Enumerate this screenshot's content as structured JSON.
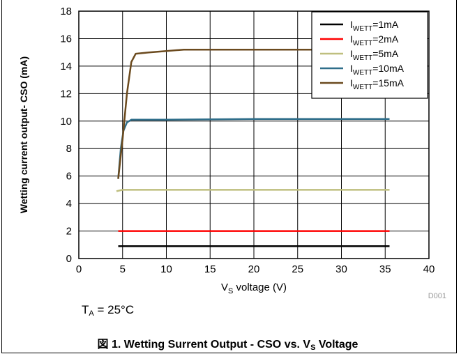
{
  "chart_data": {
    "type": "line",
    "xlabel": "V",
    "xlabel_sub": "S",
    "xlabel_suffix": " voltage (V)",
    "ylabel": "Wetting current output- CSO (mA)",
    "xlim": [
      0,
      40
    ],
    "ylim": [
      0,
      18
    ],
    "xticks": [
      0,
      5,
      10,
      15,
      20,
      25,
      30,
      35,
      40
    ],
    "yticks": [
      0,
      2,
      4,
      6,
      8,
      10,
      12,
      14,
      16,
      18
    ],
    "grid": true,
    "legend_position": "top-right",
    "series": [
      {
        "name": "I",
        "name_sub": "WETT",
        "name_suffix": "=1mA",
        "color": "#000000",
        "x": [
          4.5,
          10,
          20,
          30,
          35.5
        ],
        "y": [
          0.9,
          0.9,
          0.9,
          0.9,
          0.9
        ]
      },
      {
        "name": "I",
        "name_sub": "WETT",
        "name_suffix": "=2mA",
        "color": "#ff0000",
        "x": [
          4.5,
          10,
          20,
          30,
          35.5
        ],
        "y": [
          2.0,
          2.0,
          2.0,
          2.0,
          2.0
        ]
      },
      {
        "name": "I",
        "name_sub": "WETT",
        "name_suffix": "=5mA",
        "color": "#bfbf7f",
        "x": [
          4.3,
          5.0,
          10,
          20,
          30,
          35.5
        ],
        "y": [
          4.9,
          5.0,
          5.0,
          5.0,
          5.0,
          5.0
        ]
      },
      {
        "name": "I",
        "name_sub": "WETT",
        "name_suffix": "=10mA",
        "color": "#2f6e8a",
        "x": [
          4.5,
          4.8,
          5.1,
          5.5,
          6.0,
          7.0,
          10,
          20,
          30,
          35.5
        ],
        "y": [
          5.8,
          8.0,
          9.3,
          9.9,
          10.1,
          10.1,
          10.1,
          10.15,
          10.15,
          10.15
        ]
      },
      {
        "name": "I",
        "name_sub": "WETT",
        "name_suffix": "=15mA",
        "color": "#6b4a1e",
        "x": [
          4.5,
          5.0,
          5.5,
          6.0,
          6.5,
          8.0,
          10,
          12,
          15,
          20,
          30,
          35.5
        ],
        "y": [
          5.8,
          8.7,
          12.0,
          14.3,
          14.9,
          15.0,
          15.1,
          15.2,
          15.2,
          15.2,
          15.2,
          15.2
        ]
      }
    ],
    "watermark": "D001"
  },
  "note": {
    "prefix": "T",
    "sub": "A",
    "suffix": " = 25°C"
  },
  "caption": {
    "prefix": "図 1. Wetting Surrent Output - CSO vs. V",
    "sub": "S",
    "suffix": " Voltage"
  }
}
